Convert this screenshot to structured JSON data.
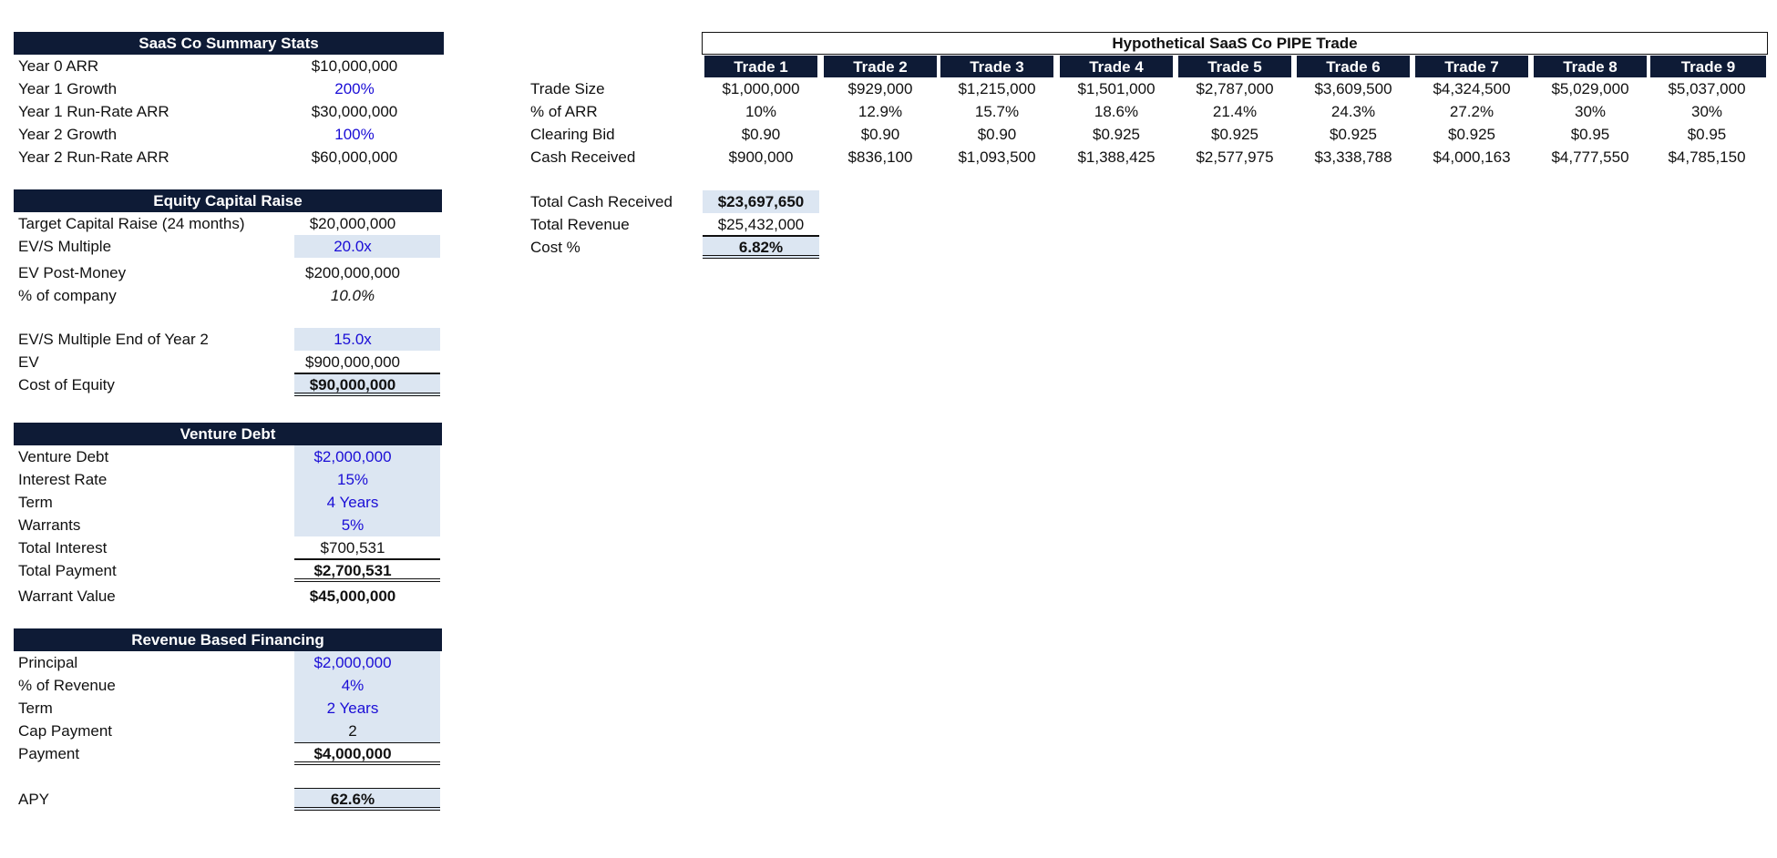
{
  "summary": {
    "title": "SaaS Co Summary Stats",
    "rows": [
      {
        "label": "Year 0 ARR",
        "value": "$10,000,000"
      },
      {
        "label": "Year 1 Growth",
        "value": "200%"
      },
      {
        "label": "Year 1 Run-Rate ARR",
        "value": "$30,000,000"
      },
      {
        "label": "Year 2 Growth",
        "value": "100%"
      },
      {
        "label": "Year 2 Run-Rate ARR",
        "value": "$60,000,000"
      }
    ]
  },
  "equity": {
    "title": "Equity Capital Raise",
    "rows": [
      {
        "label": "Target Capital Raise (24 months)",
        "value": "$20,000,000"
      },
      {
        "label": "EV/S Multiple",
        "value": "20.0x"
      },
      {
        "label": "EV Post-Money",
        "value": "$200,000,000"
      },
      {
        "label": "% of company",
        "value": "10.0%"
      },
      {
        "label": "EV/S Multiple End of Year 2",
        "value": "15.0x"
      },
      {
        "label": "EV",
        "value": "$900,000,000"
      },
      {
        "label": "Cost of Equity",
        "value": "$90,000,000"
      }
    ]
  },
  "debt": {
    "title": "Venture Debt",
    "rows": [
      {
        "label": "Venture Debt",
        "value": "$2,000,000"
      },
      {
        "label": "Interest Rate",
        "value": "15%"
      },
      {
        "label": "Term",
        "value": "4 Years"
      },
      {
        "label": "Warrants",
        "value": "5%"
      },
      {
        "label": "Total Interest",
        "value": "$700,531"
      },
      {
        "label": "Total Payment",
        "value": "$2,700,531"
      },
      {
        "label": "Warrant Value",
        "value": "$45,000,000"
      }
    ]
  },
  "rbf": {
    "title": "Revenue Based Financing",
    "rows": [
      {
        "label": "Principal",
        "value": "$2,000,000"
      },
      {
        "label": "% of Revenue",
        "value": "4%"
      },
      {
        "label": "Term",
        "value": "2 Years"
      },
      {
        "label": "Cap Payment",
        "value": "2"
      },
      {
        "label": "Payment",
        "value": "$4,000,000"
      },
      {
        "label": "APY",
        "value": "62.6%"
      }
    ]
  },
  "pipe": {
    "title": "Hypothetical SaaS Co PIPE Trade",
    "headers": [
      "Trade 1",
      "Trade 2",
      "Trade 3",
      "Trade 4",
      "Trade 5",
      "Trade 6",
      "Trade 7",
      "Trade 8",
      "Trade 9"
    ],
    "row_labels": [
      "Trade Size",
      "% of ARR",
      "Clearing Bid",
      "Cash Received"
    ],
    "rows": [
      [
        "$1,000,000",
        "$929,000",
        "$1,215,000",
        "$1,501,000",
        "$2,787,000",
        "$3,609,500",
        "$4,324,500",
        "$5,029,000",
        "$5,037,000"
      ],
      [
        "10%",
        "12.9%",
        "15.7%",
        "18.6%",
        "21.4%",
        "24.3%",
        "27.2%",
        "30%",
        "30%"
      ],
      [
        "$0.90",
        "$0.90",
        "$0.90",
        "$0.925",
        "$0.925",
        "$0.925",
        "$0.925",
        "$0.95",
        "$0.95"
      ],
      [
        "$900,000",
        "$836,100",
        "$1,093,500",
        "$1,388,425",
        "$2,577,975",
        "$3,338,788",
        "$4,000,163",
        "$4,777,550",
        "$4,785,150"
      ]
    ],
    "totals": [
      {
        "label": "Total Cash Received",
        "value": "$23,697,650"
      },
      {
        "label": "Total Revenue",
        "value": "$25,432,000"
      },
      {
        "label": "Cost %",
        "value": "6.82%"
      }
    ]
  }
}
